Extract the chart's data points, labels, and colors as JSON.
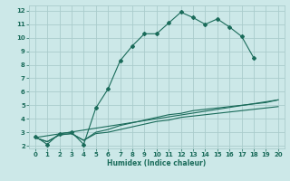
{
  "xlabel": "Humidex (Indice chaleur)",
  "bg_color": "#cce8e8",
  "grid_color": "#aacccc",
  "line_color": "#1a6b5a",
  "xlim": [
    -0.5,
    20.5
  ],
  "ylim": [
    1.8,
    12.4
  ],
  "xticks": [
    0,
    1,
    2,
    3,
    4,
    5,
    6,
    7,
    8,
    9,
    10,
    11,
    12,
    13,
    14,
    15,
    16,
    17,
    18,
    19,
    20
  ],
  "yticks": [
    2,
    3,
    4,
    5,
    6,
    7,
    8,
    9,
    10,
    11,
    12
  ],
  "series": [
    {
      "x": [
        0,
        1,
        2,
        3,
        4,
        5,
        6,
        7,
        8,
        9,
        10,
        11,
        12,
        13,
        14,
        15,
        16,
        17,
        18
      ],
      "y": [
        2.7,
        2.1,
        2.9,
        3.0,
        2.1,
        4.8,
        6.2,
        8.3,
        9.4,
        10.3,
        10.3,
        11.1,
        11.9,
        11.5,
        11.0,
        11.4,
        10.8,
        10.1,
        8.5
      ],
      "marker": true
    },
    {
      "x": [
        0,
        1,
        2,
        3,
        4,
        5,
        6,
        7,
        8,
        9,
        10,
        11,
        12,
        13,
        14,
        15,
        16,
        17,
        18,
        19,
        20
      ],
      "y": [
        2.6,
        2.3,
        2.8,
        2.9,
        2.4,
        3.0,
        3.2,
        3.5,
        3.7,
        3.9,
        4.1,
        4.3,
        4.4,
        4.6,
        4.7,
        4.8,
        4.9,
        5.0,
        5.1,
        5.2,
        5.4
      ],
      "marker": false
    },
    {
      "x": [
        0,
        1,
        2,
        3,
        4,
        5,
        6,
        7,
        8,
        9,
        10,
        11,
        12,
        13,
        14,
        15,
        16,
        17,
        18,
        19,
        20
      ],
      "y": [
        2.6,
        2.3,
        2.8,
        2.9,
        2.4,
        2.9,
        3.0,
        3.2,
        3.4,
        3.6,
        3.8,
        3.9,
        4.1,
        4.2,
        4.3,
        4.4,
        4.5,
        4.6,
        4.7,
        4.8,
        4.9
      ],
      "marker": false
    },
    {
      "x": [
        0,
        20
      ],
      "y": [
        2.6,
        5.4
      ],
      "marker": false
    }
  ]
}
